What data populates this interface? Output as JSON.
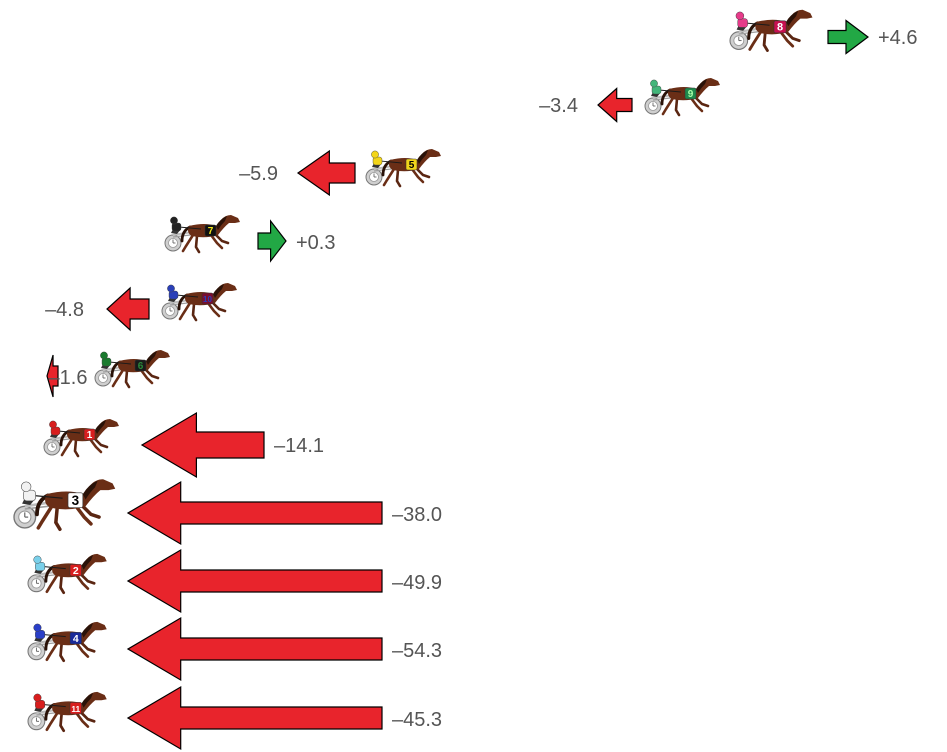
{
  "colors": {
    "loss": "#e8242c",
    "gain": "#22a845",
    "arrow_outline": "#000000",
    "horse_body": "#6a2e16",
    "horse_mane": "#2a1208",
    "sulky": "#cfcfcf",
    "text": "#555555"
  },
  "icon": "harness-racing-horse-icon",
  "entries": [
    {
      "number": "8",
      "change": "+4.6",
      "direction": "gain",
      "jersey": "#e63b8a",
      "saddle": "#c8104f",
      "numcolor": "#ffffff"
    },
    {
      "number": "9",
      "change": "–3.4",
      "direction": "loss",
      "jersey": "#43b57a",
      "saddle": "#1e8a4c",
      "numcolor": "#aaffaa"
    },
    {
      "number": "5",
      "change": "–5.9",
      "direction": "loss",
      "jersey": "#f2d51a",
      "saddle": "#f2d51a",
      "numcolor": "#000000"
    },
    {
      "number": "7",
      "change": "+0.3",
      "direction": "gain",
      "jersey": "#222222",
      "saddle": "#111111",
      "numcolor": "#f2e81a"
    },
    {
      "number": "10",
      "change": "–4.8",
      "direction": "loss",
      "jersey": "#2a3fb8",
      "saddle": "#7a0d2e",
      "numcolor": "#2a3fb8"
    },
    {
      "number": "6",
      "change": "–1.6",
      "direction": "loss",
      "jersey": "#1a7a2e",
      "saddle": "#1a1a1a",
      "numcolor": "#2a8a3a"
    },
    {
      "number": "1",
      "change": "–14.1",
      "direction": "loss",
      "jersey": "#d81e1e",
      "saddle": "#d81e1e",
      "numcolor": "#ffffff"
    },
    {
      "number": "3",
      "change": "–38.0",
      "direction": "loss",
      "jersey": "#f2f2f2",
      "saddle": "#ffffff",
      "numcolor": "#000000"
    },
    {
      "number": "2",
      "change": "–49.9",
      "direction": "loss",
      "jersey": "#7ad0ea",
      "saddle": "#d81e1e",
      "numcolor": "#ffffff"
    },
    {
      "number": "4",
      "change": "–54.3",
      "direction": "loss",
      "jersey": "#2a3fc8",
      "saddle": "#1a2a9a",
      "numcolor": "#ffffff"
    },
    {
      "number": "11",
      "change": "–45.3",
      "direction": "loss",
      "jersey": "#d81e1e",
      "saddle": "#d81e1e",
      "numcolor": "#ffffff"
    }
  ]
}
